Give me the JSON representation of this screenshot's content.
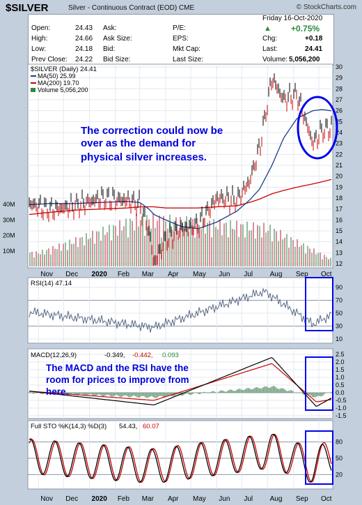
{
  "header": {
    "ticker": "$SILVER",
    "subtitle": "Silver - Continuous Contract (EOD)  CME",
    "logo": "© StockCharts.com",
    "date": "Friday  16-Oct-2020",
    "change_pct": "+0.75%"
  },
  "quote": {
    "col1": [
      [
        "Open:",
        "24.43"
      ],
      [
        "High:",
        "24.66"
      ],
      [
        "Low:",
        "24.18"
      ],
      [
        "Prev Close:",
        "24.22"
      ]
    ],
    "col2": [
      "Ask:",
      "Ask Size:",
      "Bid:",
      "Bid Size:"
    ],
    "col3": [
      "P/E:",
      "EPS:",
      "Mkt Cap:",
      "Last Size:"
    ],
    "col4": [
      [
        "Chg:",
        "+0.18"
      ],
      [
        "Last:",
        "24.41"
      ],
      [
        "Volume:",
        "5,056,200"
      ]
    ]
  },
  "price_panel": {
    "legend": [
      "$SILVER (Daily) 24.41",
      "MA(50) 25.99",
      "MA(200) 19.70",
      "Volume 5,056,200"
    ],
    "y_ticks": [
      "30",
      "29",
      "28",
      "27",
      "26",
      "25",
      "24",
      "23",
      "22",
      "21",
      "20",
      "19",
      "18",
      "17",
      "16",
      "15",
      "14",
      "13",
      "12"
    ],
    "vol_ticks": [
      "40M",
      "30M",
      "20M",
      "10M"
    ],
    "annotation": [
      "The correction could now be",
      "over as the demand for",
      "physical silver increases."
    ]
  },
  "x_labels": [
    "Nov",
    "Dec",
    "2020",
    "Feb",
    "Mar",
    "Apr",
    "May",
    "Jun",
    "Jul",
    "Aug",
    "Sep",
    "Oct"
  ],
  "rsi_panel": {
    "legend": "RSI(14) 47.14",
    "y_ticks": [
      "90",
      "70",
      "50",
      "30",
      "10"
    ]
  },
  "macd_panel": {
    "legend_label": "MACD(12,26,9)",
    "legend_v1": "-0.349,",
    "legend_v2": "-0.442,",
    "legend_v3": "0.093",
    "y_ticks": [
      "2.5",
      "2.0",
      "1.5",
      "1.0",
      "0.5",
      "0.0",
      "-0.5",
      "-1.0",
      "-1.5"
    ],
    "annotation": [
      "The MACD and the RSI have the",
      "room for prices to improve from",
      "here."
    ]
  },
  "sto_panel": {
    "legend_label": "Full STO %K(14,3) %D(3)",
    "legend_k": "54.43,",
    "legend_d": "60.07",
    "y_ticks": [
      "80",
      "50",
      "20"
    ]
  },
  "colors": {
    "price_up": "#000000",
    "price_down": "#cc0000",
    "ma50": "#1e3a8a",
    "ma200": "#cc0000",
    "annotation": "#0000dd",
    "box": "#0000ee"
  },
  "chart_data": [
    {
      "type": "line",
      "title": "$SILVER (Daily)",
      "x": [
        "2019-10-21",
        "2019-11-15",
        "2019-12-15",
        "2020-01-15",
        "2020-02-15",
        "2020-03-01",
        "2020-03-12",
        "2020-03-18",
        "2020-04-01",
        "2020-04-20",
        "2020-05-10",
        "2020-06-01",
        "2020-06-25",
        "2020-07-10",
        "2020-07-22",
        "2020-08-06",
        "2020-08-20",
        "2020-09-05",
        "2020-09-24",
        "2020-10-05",
        "2020-10-16"
      ],
      "series": [
        {
          "name": "$SILVER",
          "values": [
            17.5,
            16.9,
            17.3,
            18.0,
            17.8,
            17.4,
            15.0,
            12.0,
            14.2,
            15.2,
            15.5,
            18.0,
            17.8,
            19.5,
            22.5,
            29.0,
            27.0,
            27.5,
            23.0,
            24.2,
            24.41
          ]
        },
        {
          "name": "MA(50)",
          "values": [
            17.4,
            17.5,
            17.5,
            17.6,
            17.7,
            17.6,
            17.0,
            16.5,
            16.0,
            15.4,
            15.2,
            15.8,
            16.8,
            17.8,
            18.8,
            21.0,
            23.5,
            25.3,
            26.0,
            26.1,
            25.99
          ]
        },
        {
          "name": "MA(200)",
          "values": [
            16.5,
            16.7,
            16.9,
            17.0,
            17.1,
            17.2,
            17.2,
            17.2,
            17.1,
            17.1,
            17.1,
            17.2,
            17.3,
            17.6,
            17.9,
            18.4,
            18.7,
            19.0,
            19.3,
            19.5,
            19.7
          ]
        }
      ],
      "ylim": [
        12,
        30
      ],
      "log_scale": false
    },
    {
      "type": "bar",
      "title": "Volume",
      "ylabel": "",
      "x": [
        "2019-11",
        "2020-03",
        "2020-08",
        "2020-10-16"
      ],
      "values": [
        10000000,
        35000000,
        28000000,
        5056200
      ],
      "ylim": [
        0,
        45000000
      ]
    },
    {
      "type": "line",
      "title": "RSI(14)",
      "x": [
        "2019-10-21",
        "2020-03-18",
        "2020-07-28",
        "2020-09-24",
        "2020-10-16"
      ],
      "values": [
        52,
        28,
        84,
        33,
        47.14
      ],
      "ylim": [
        10,
        90
      ]
    },
    {
      "type": "line",
      "title": "MACD(12,26,9)",
      "x": [
        "2019-10-21",
        "2020-03-18",
        "2020-08-06",
        "2020-09-28",
        "2020-10-16"
      ],
      "series": [
        {
          "name": "MACD",
          "values": [
            0.1,
            -0.8,
            2.3,
            -0.9,
            -0.349
          ]
        },
        {
          "name": "Signal",
          "values": [
            0.1,
            -0.5,
            1.9,
            -0.6,
            -0.442
          ]
        },
        {
          "name": "Histogram",
          "values": [
            0.0,
            -0.3,
            0.4,
            -0.3,
            0.093
          ]
        }
      ],
      "ylim": [
        -1.5,
        2.5
      ]
    },
    {
      "type": "line",
      "title": "Full STO %K(14,3) %D(3)",
      "x": [
        "2019-10-21",
        "2020-03-18",
        "2020-08-06",
        "2020-09-24",
        "2020-10-16"
      ],
      "series": [
        {
          "name": "%K",
          "values": [
            60,
            12,
            86,
            14,
            54.43
          ]
        },
        {
          "name": "%D",
          "values": [
            58,
            15,
            84,
            18,
            60.07
          ]
        }
      ],
      "ylim": [
        0,
        100
      ]
    }
  ]
}
